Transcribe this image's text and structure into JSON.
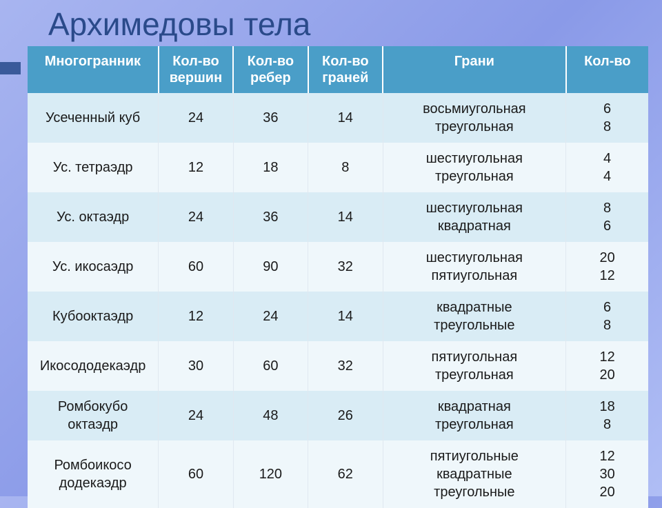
{
  "title": "Архимедовы тела",
  "headers": {
    "polyhedron": "Многогранник",
    "vertices": "Кол-во\nвершин",
    "edges": "Кол-во\nребер",
    "faces": "Кол-во\nграней",
    "faceTypes": "Грани",
    "faceCounts": "Кол-во"
  },
  "rows": [
    {
      "name": "Усеченный куб",
      "vertices": "24",
      "edges": "36",
      "faces": "14",
      "faceTypes": "восьмиугольная\nтреугольная",
      "faceCounts": "6\n8"
    },
    {
      "name": "Ус. тетраэдр",
      "vertices": "12",
      "edges": "18",
      "faces": "8",
      "faceTypes": "шестиугольная\nтреугольная",
      "faceCounts": "4\n4"
    },
    {
      "name": "Ус. октаэдр",
      "vertices": "24",
      "edges": "36",
      "faces": "14",
      "faceTypes": "шестиугольная\nквадратная",
      "faceCounts": "8\n6"
    },
    {
      "name": "Ус. икосаэдр",
      "vertices": "60",
      "edges": "90",
      "faces": "32",
      "faceTypes": "шестиугольная\nпятиугольная",
      "faceCounts": "20\n12"
    },
    {
      "name": "Кубооктаэдр",
      "vertices": "12",
      "edges": "24",
      "faces": "14",
      "faceTypes": "квадратные\nтреугольные",
      "faceCounts": "6\n8"
    },
    {
      "name": "Икосододекаэдр",
      "vertices": "30",
      "edges": "60",
      "faces": "32",
      "faceTypes": "пятиугольная\nтреугольная",
      "faceCounts": "12\n20"
    },
    {
      "name": "Ромбокубо\nоктаэдр",
      "vertices": "24",
      "edges": "48",
      "faces": "26",
      "faceTypes": "квадратная\nтреугольная",
      "faceCounts": "18\n8"
    },
    {
      "name": "Ромбоикосо\nдодекаэдр",
      "vertices": "60",
      "edges": "120",
      "faces": "62",
      "faceTypes": "пятиугольные\nквадратные\nтреугольные",
      "faceCounts": "12\n30\n20"
    }
  ],
  "style": {
    "header_bg": "#4a9ec8",
    "header_fg": "#ffffff",
    "row_odd_bg": "#d9ecf5",
    "row_even_bg": "#eff7fb",
    "title_color": "#2a4a8a",
    "title_fontsize": 46,
    "cell_fontsize": 20,
    "header_fontsize": 20,
    "slide_bg_gradient": [
      "#a8b5f0",
      "#8a9ae8",
      "#b0bef5"
    ]
  }
}
